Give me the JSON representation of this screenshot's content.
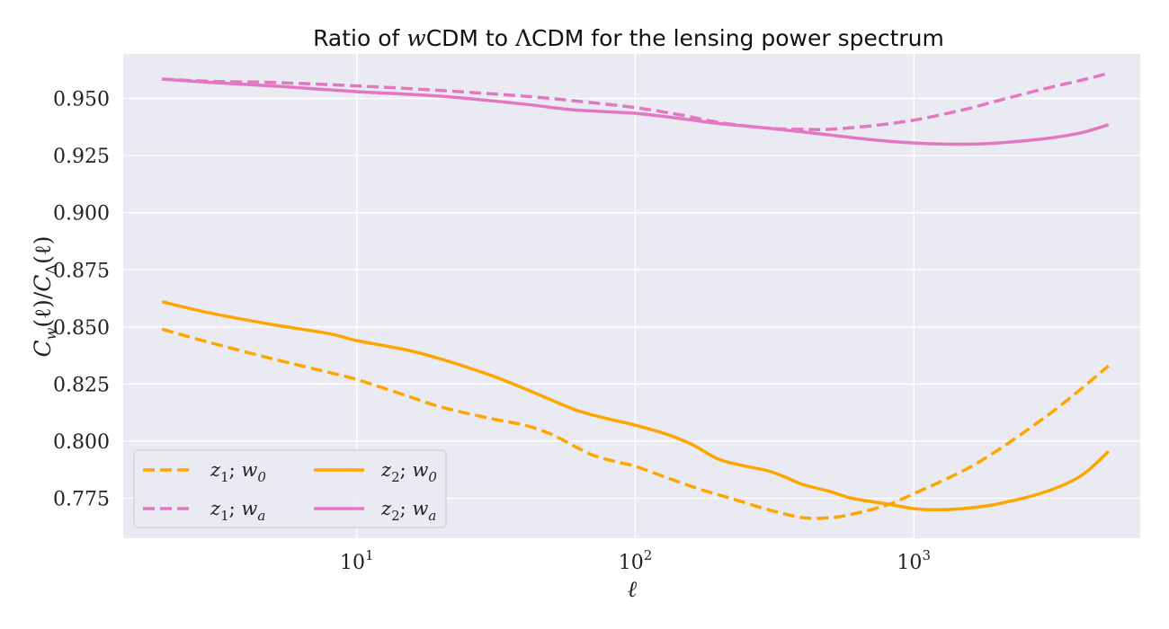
{
  "chart_data": {
    "type": "line",
    "title_prefix": "Ratio of ",
    "title_w": "w",
    "title_cdm": "CDM to ",
    "title_lambda": "Λ",
    "title_suffix": "CDM for the lensing power spectrum",
    "xlabel": "ℓ",
    "ylabel": "C_w(ℓ)/C_Λ(ℓ)",
    "ylabel_C": "C",
    "ylabel_w": "w",
    "ylabel_mid": "(ℓ)/",
    "ylabel_C2": "C",
    "ylabel_lambda": "Λ",
    "ylabel_end": "(ℓ)",
    "x_scale": "log",
    "xlim": [
      1.45,
      6500
    ],
    "ylim": [
      0.7575,
      0.9695
    ],
    "grid": true,
    "legend_position": "lower-left",
    "x_ticks": [
      {
        "value": 10,
        "base": "10",
        "exp": "1"
      },
      {
        "value": 100,
        "base": "10",
        "exp": "2"
      },
      {
        "value": 1000,
        "base": "10",
        "exp": "3"
      }
    ],
    "y_ticks": [
      {
        "value": 0.775,
        "label": "0.775"
      },
      {
        "value": 0.8,
        "label": "0.800"
      },
      {
        "value": 0.825,
        "label": "0.825"
      },
      {
        "value": 0.85,
        "label": "0.850"
      },
      {
        "value": 0.875,
        "label": "0.875"
      },
      {
        "value": 0.9,
        "label": "0.900"
      },
      {
        "value": 0.925,
        "label": "0.925"
      },
      {
        "value": 0.95,
        "label": "0.950"
      }
    ],
    "series": [
      {
        "name": "z_1; w_0",
        "name_z": "z",
        "name_zsub": "1",
        "name_p": "w",
        "name_psub": "0",
        "color": "#ffa500",
        "dash": true,
        "points": [
          [
            2,
            0.849
          ],
          [
            3,
            0.843
          ],
          [
            5,
            0.836
          ],
          [
            8,
            0.83
          ],
          [
            10,
            0.827
          ],
          [
            15,
            0.82
          ],
          [
            20,
            0.815
          ],
          [
            30,
            0.81
          ],
          [
            40,
            0.807
          ],
          [
            50,
            0.803
          ],
          [
            60,
            0.798
          ],
          [
            70,
            0.794
          ],
          [
            85,
            0.791
          ],
          [
            100,
            0.789
          ],
          [
            130,
            0.784
          ],
          [
            170,
            0.779
          ],
          [
            220,
            0.775
          ],
          [
            300,
            0.77
          ],
          [
            400,
            0.7665
          ],
          [
            500,
            0.7665
          ],
          [
            600,
            0.768
          ],
          [
            800,
            0.772
          ],
          [
            1000,
            0.777
          ],
          [
            1500,
            0.787
          ],
          [
            2000,
            0.796
          ],
          [
            3000,
            0.811
          ],
          [
            4000,
            0.823
          ],
          [
            5000,
            0.833
          ]
        ]
      },
      {
        "name": "z_1; w_a",
        "name_z": "z",
        "name_zsub": "1",
        "name_p": "w",
        "name_psub": "a",
        "color": "#e377c2",
        "dash": true,
        "points": [
          [
            2,
            0.9585
          ],
          [
            3,
            0.9575
          ],
          [
            5,
            0.957
          ],
          [
            10,
            0.9555
          ],
          [
            20,
            0.9535
          ],
          [
            40,
            0.951
          ],
          [
            60,
            0.949
          ],
          [
            100,
            0.946
          ],
          [
            150,
            0.9425
          ],
          [
            200,
            0.9395
          ],
          [
            300,
            0.937
          ],
          [
            400,
            0.9365
          ],
          [
            500,
            0.9365
          ],
          [
            700,
            0.938
          ],
          [
            1000,
            0.9405
          ],
          [
            1500,
            0.945
          ],
          [
            2000,
            0.949
          ],
          [
            3000,
            0.9545
          ],
          [
            4000,
            0.958
          ],
          [
            5000,
            0.961
          ]
        ]
      },
      {
        "name": "z_2; w_0",
        "name_z": "z",
        "name_zsub": "2",
        "name_p": "w",
        "name_psub": "0",
        "color": "#ffa500",
        "dash": false,
        "points": [
          [
            2,
            0.861
          ],
          [
            3,
            0.856
          ],
          [
            5,
            0.851
          ],
          [
            8,
            0.847
          ],
          [
            10,
            0.844
          ],
          [
            15,
            0.84
          ],
          [
            20,
            0.836
          ],
          [
            30,
            0.829
          ],
          [
            40,
            0.823
          ],
          [
            50,
            0.818
          ],
          [
            60,
            0.814
          ],
          [
            70,
            0.8115
          ],
          [
            85,
            0.809
          ],
          [
            100,
            0.807
          ],
          [
            130,
            0.803
          ],
          [
            160,
            0.7985
          ],
          [
            200,
            0.792
          ],
          [
            250,
            0.789
          ],
          [
            300,
            0.787
          ],
          [
            350,
            0.784
          ],
          [
            400,
            0.781
          ],
          [
            500,
            0.778
          ],
          [
            600,
            0.775
          ],
          [
            800,
            0.7725
          ],
          [
            1000,
            0.7705
          ],
          [
            1200,
            0.77
          ],
          [
            1500,
            0.7705
          ],
          [
            2000,
            0.7725
          ],
          [
            3000,
            0.778
          ],
          [
            4000,
            0.785
          ],
          [
            5000,
            0.7955
          ]
        ]
      },
      {
        "name": "z_2; w_a",
        "name_z": "z",
        "name_zsub": "2",
        "name_p": "w",
        "name_psub": "a",
        "color": "#e377c2",
        "dash": false,
        "points": [
          [
            2,
            0.9585
          ],
          [
            3,
            0.957
          ],
          [
            5,
            0.9555
          ],
          [
            10,
            0.953
          ],
          [
            20,
            0.951
          ],
          [
            40,
            0.9475
          ],
          [
            60,
            0.945
          ],
          [
            100,
            0.9435
          ],
          [
            150,
            0.941
          ],
          [
            200,
            0.939
          ],
          [
            300,
            0.937
          ],
          [
            500,
            0.934
          ],
          [
            700,
            0.932
          ],
          [
            1000,
            0.9305
          ],
          [
            1300,
            0.93
          ],
          [
            1600,
            0.93
          ],
          [
            2000,
            0.9305
          ],
          [
            3000,
            0.9325
          ],
          [
            4000,
            0.935
          ],
          [
            5000,
            0.9385
          ]
        ]
      }
    ]
  }
}
